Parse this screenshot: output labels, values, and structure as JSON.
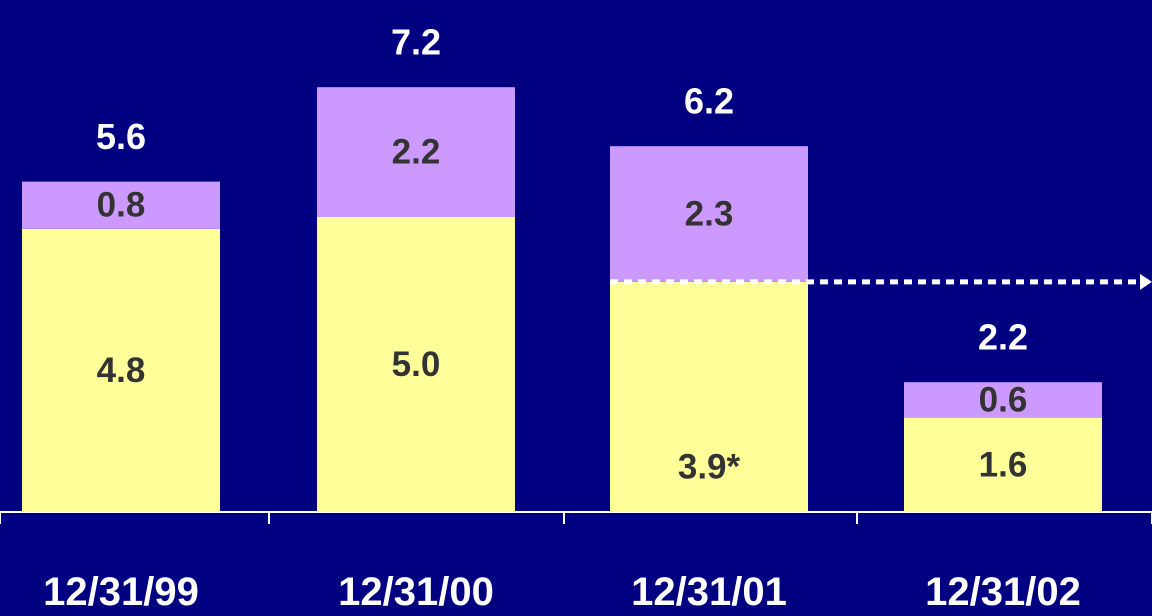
{
  "chart_data": {
    "type": "bar",
    "stacked": true,
    "categories": [
      "12/31/99",
      "12/31/00",
      "12/31/01",
      "12/31/02"
    ],
    "series": [
      {
        "values": [
          4.8,
          5.0,
          3.9,
          1.6
        ],
        "labels": [
          "4.8",
          "5.0",
          "3.9*",
          "1.6"
        ],
        "color": "#FFFF99"
      },
      {
        "values": [
          0.8,
          2.2,
          2.3,
          0.6
        ],
        "labels": [
          "0.8",
          "2.2",
          "2.3",
          "0.6"
        ],
        "color": "#CC99FF"
      }
    ],
    "totals": [
      "5.6",
      "7.2",
      "6.2",
      "2.2"
    ],
    "title": "",
    "xlabel": "",
    "ylabel": "",
    "ylim": [
      0,
      7.2
    ],
    "legend": "none",
    "grid": false,
    "annotations": [
      {
        "type": "dotted-arrow",
        "from_category": "12/31/01",
        "at_value": 3.9,
        "direction": "right"
      }
    ],
    "colors": {
      "background": "#000080",
      "axis": "#FFFFFF",
      "label_on_background": "#FFFFFF",
      "label_on_bar": "#333333",
      "arrow": "#FFFFFF"
    }
  }
}
